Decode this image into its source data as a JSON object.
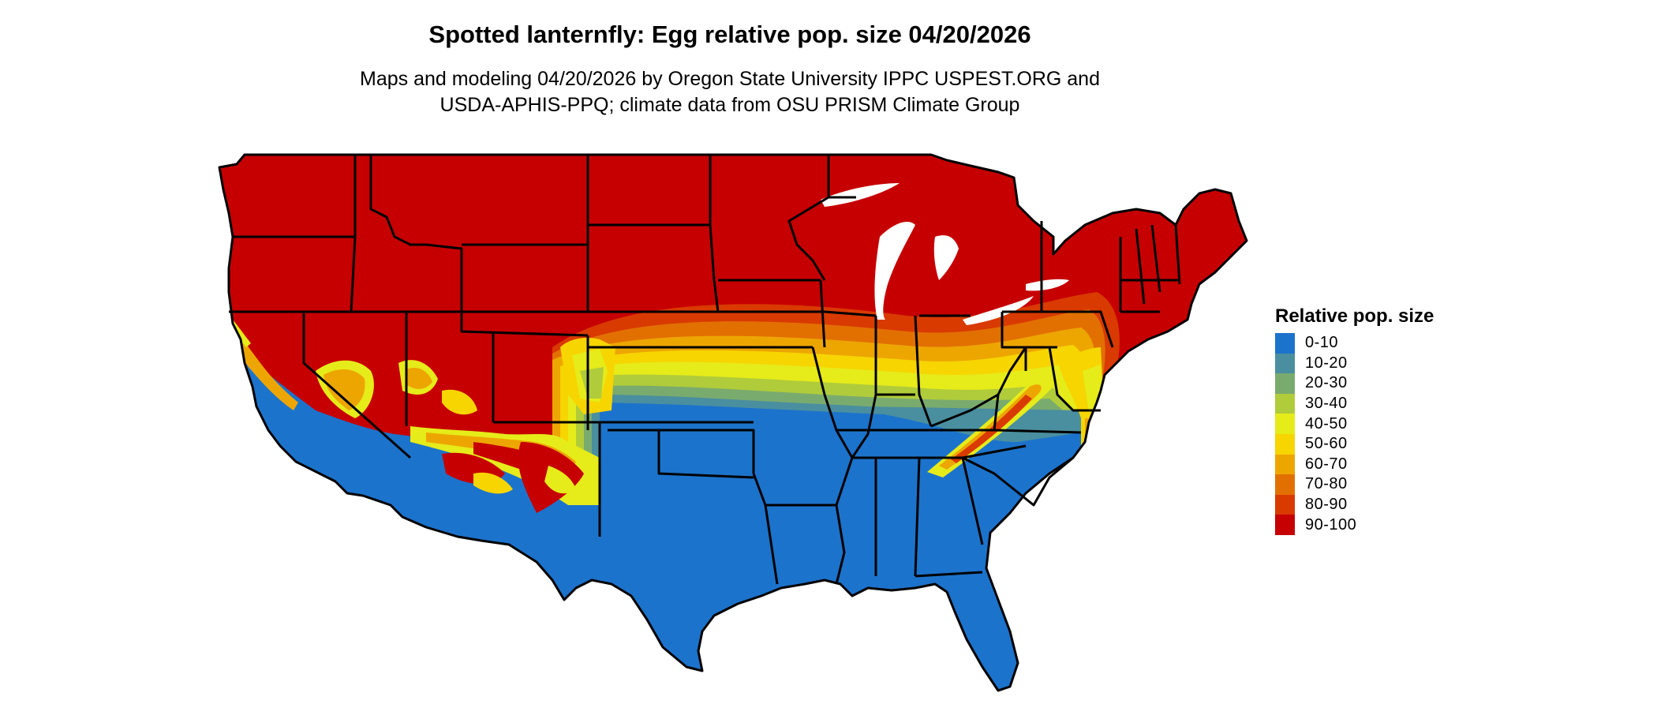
{
  "title": "Spotted lanternfly: Egg relative pop. size 04/20/2026",
  "subtitle": {
    "line1": "Maps and modeling 04/20/2026 by Oregon State University IPPC USPEST.ORG and",
    "line2": "USDA-APHIS-PPQ; climate data from OSU PRISM Climate Group"
  },
  "legend": {
    "title": "Relative pop. size",
    "items": [
      {
        "label": "0-10",
        "color": "#1c73cc"
      },
      {
        "label": "10-20",
        "color": "#4a8f9f"
      },
      {
        "label": "20-30",
        "color": "#7aab6e"
      },
      {
        "label": "30-40",
        "color": "#b0cc3a"
      },
      {
        "label": "40-50",
        "color": "#e6eb1a"
      },
      {
        "label": "50-60",
        "color": "#f7d500"
      },
      {
        "label": "60-70",
        "color": "#eda600"
      },
      {
        "label": "70-80",
        "color": "#e27000"
      },
      {
        "label": "80-90",
        "color": "#d93a00"
      },
      {
        "label": "90-100",
        "color": "#c60000"
      }
    ]
  },
  "map": {
    "region": "Contiguous United States",
    "high_zone": "north and interior west (90-100)",
    "low_zone": "south and southwest coast (0-10)"
  }
}
